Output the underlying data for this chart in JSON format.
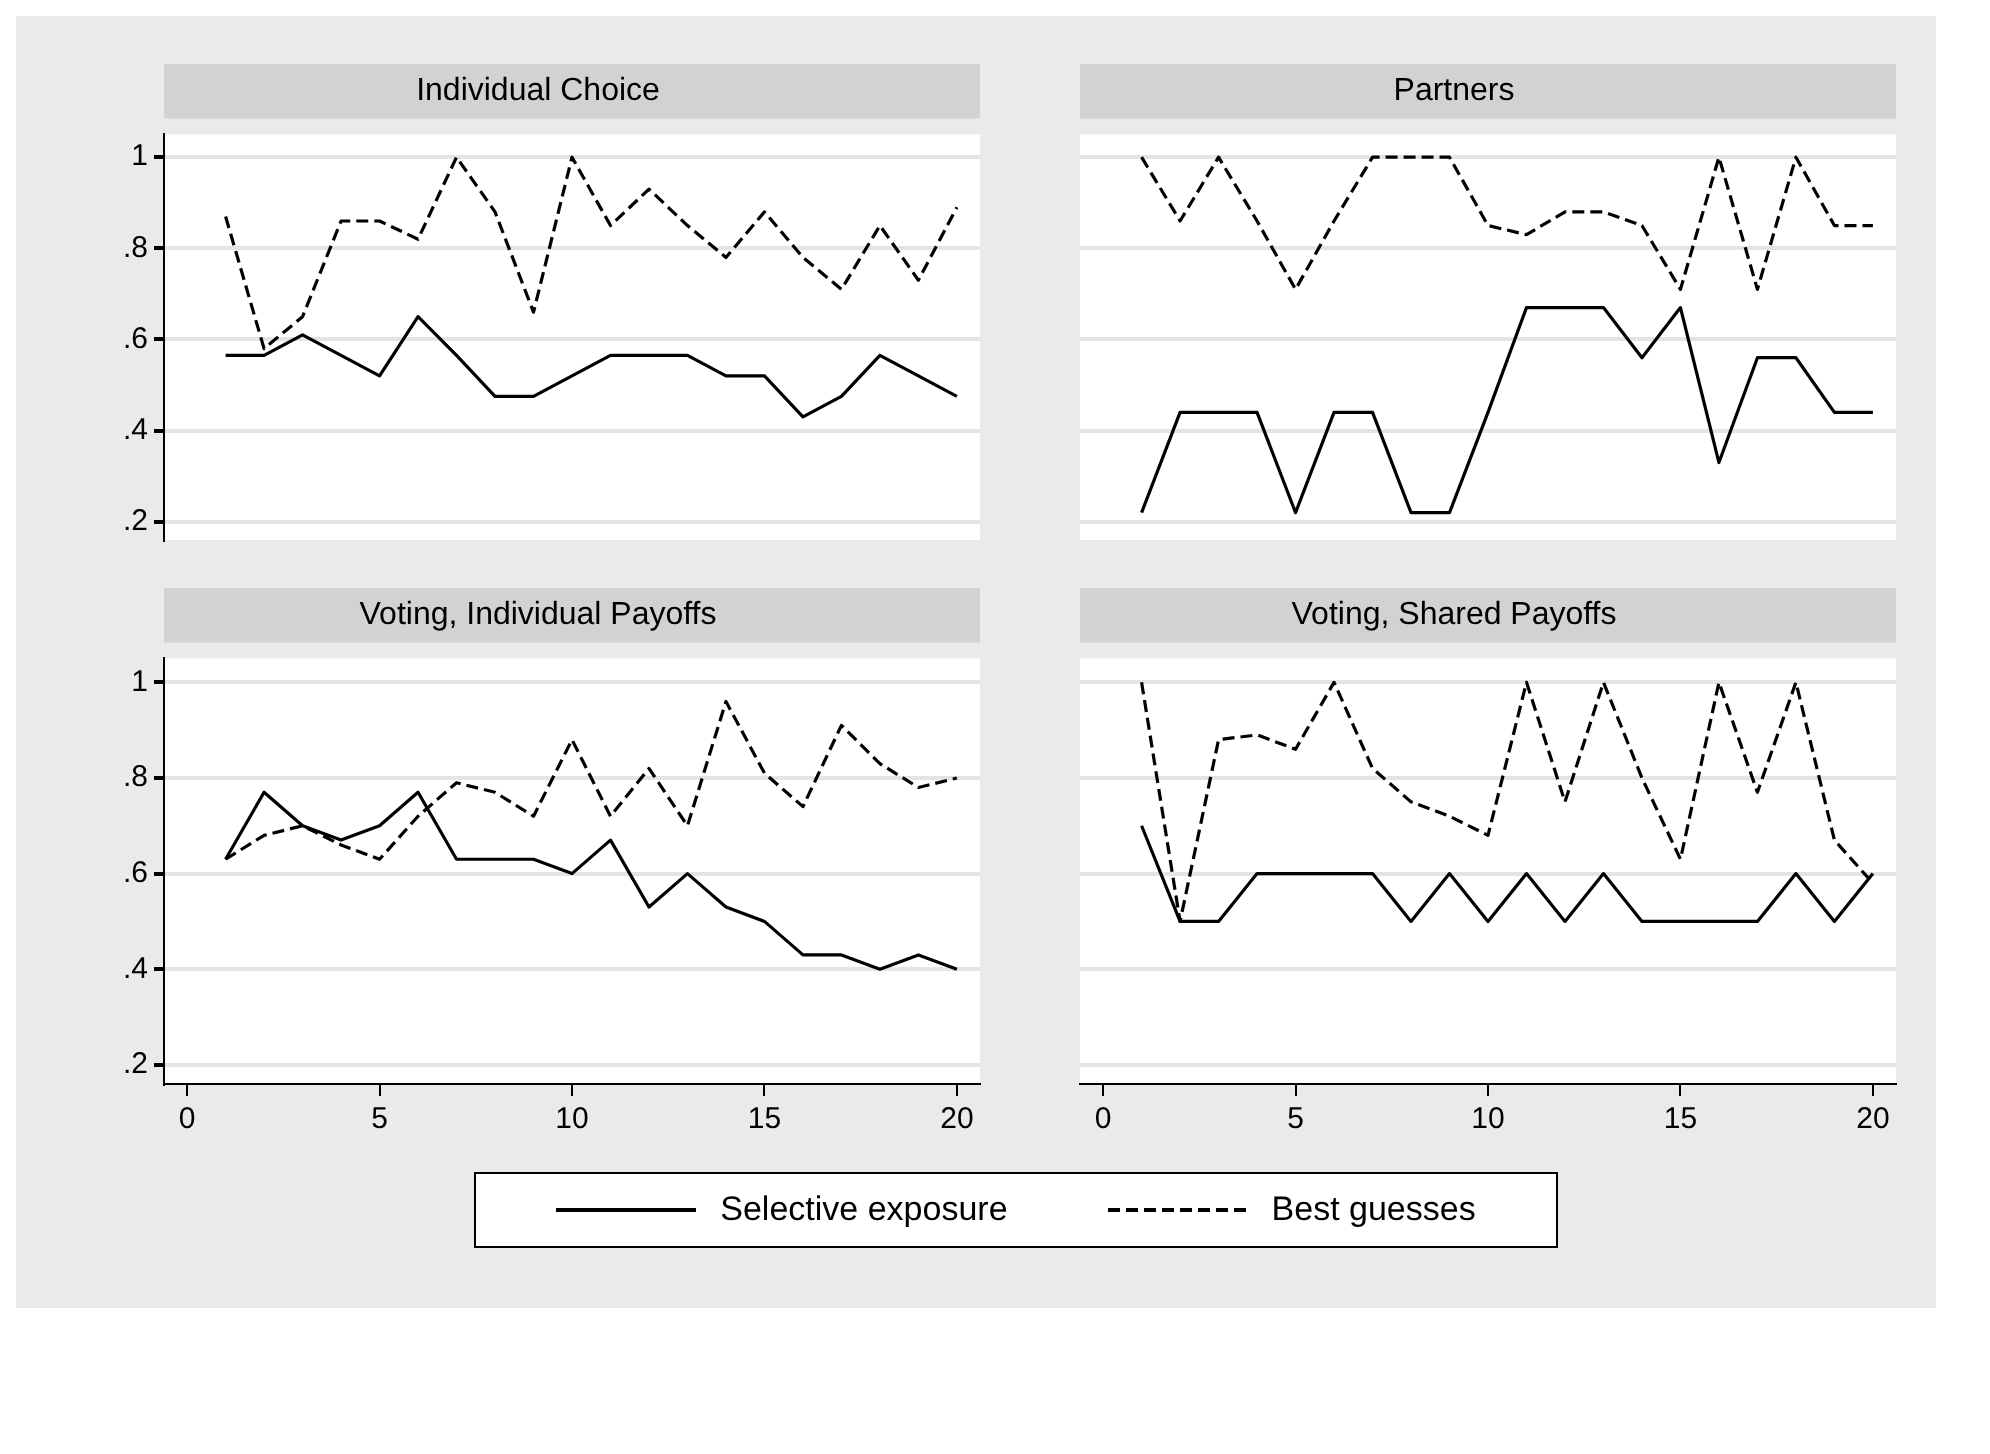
{
  "chart_data": [
    {
      "type": "line",
      "title": "Individual Choice",
      "x": [
        1,
        2,
        3,
        4,
        5,
        6,
        7,
        8,
        9,
        10,
        11,
        12,
        13,
        14,
        15,
        16,
        17,
        18,
        19,
        20
      ],
      "xlim": [
        -0.6,
        20.6
      ],
      "xticks": [
        0,
        5,
        10,
        15,
        20
      ],
      "ylim": [
        0.16,
        1.05
      ],
      "yticks": [
        {
          "value": 0.2,
          "label": ".2"
        },
        {
          "value": 0.4,
          "label": ".4"
        },
        {
          "value": 0.6,
          "label": ".6"
        },
        {
          "value": 0.8,
          "label": ".8"
        },
        {
          "value": 1,
          "label": "1"
        }
      ],
      "grid": "y",
      "tick_labels": "y",
      "legend": "bottom",
      "marker": "none",
      "series": [
        {
          "name": "Selective exposure",
          "color": "#000000",
          "line_style": "solid",
          "values": [
            0.565,
            0.565,
            0.61,
            0.565,
            0.52,
            0.65,
            0.565,
            0.475,
            0.475,
            0.52,
            0.565,
            0.565,
            0.565,
            0.52,
            0.52,
            0.43,
            0.475,
            0.565,
            0.52,
            0.475
          ]
        },
        {
          "name": "Best guesses",
          "color": "#000000",
          "line_style": "dashed",
          "values": [
            0.87,
            0.58,
            0.65,
            0.86,
            0.86,
            0.82,
            1.0,
            0.88,
            0.66,
            1.0,
            0.85,
            0.93,
            0.85,
            0.78,
            0.88,
            0.78,
            0.71,
            0.85,
            0.73,
            0.89
          ]
        }
      ]
    },
    {
      "type": "line",
      "title": "Partners",
      "x": [
        1,
        2,
        3,
        4,
        5,
        6,
        7,
        8,
        9,
        10,
        11,
        12,
        13,
        14,
        15,
        16,
        17,
        18,
        19,
        20
      ],
      "xlim": [
        -0.6,
        20.6
      ],
      "xticks": [
        0,
        5,
        10,
        15,
        20
      ],
      "ylim": [
        0.16,
        1.05
      ],
      "yticks": [
        0.2,
        0.4,
        0.6,
        0.8,
        1
      ],
      "grid": "y",
      "tick_labels": false,
      "marker": "none",
      "series": [
        {
          "color": "#000000",
          "line_style": "solid",
          "values": [
            0.22,
            0.44,
            0.44,
            0.44,
            0.22,
            0.44,
            0.44,
            0.22,
            0.22,
            0.44,
            0.67,
            0.67,
            0.67,
            0.56,
            0.67,
            0.33,
            0.56,
            0.56,
            0.44,
            0.44
          ]
        },
        {
          "color": "#000000",
          "line_style": "dashed",
          "values": [
            1,
            0.86,
            1,
            0.86,
            0.71,
            0.86,
            1,
            1,
            1,
            0.85,
            0.83,
            0.88,
            0.88,
            0.85,
            0.71,
            1,
            0.71,
            1,
            0.85,
            0.85
          ]
        }
      ]
    },
    {
      "type": "line",
      "title": "Voting, Individual Payoffs",
      "x": [
        1,
        2,
        3,
        4,
        5,
        6,
        7,
        8,
        9,
        10,
        11,
        12,
        13,
        14,
        15,
        16,
        17,
        18,
        19,
        20
      ],
      "xlim": [
        -0.6,
        20.6
      ],
      "xticks": [
        0,
        5,
        10,
        15,
        20
      ],
      "ylim": [
        0.16,
        1.05
      ],
      "yticks": [
        {
          "value": 0.2,
          "label": ".2"
        },
        {
          "value": 0.4,
          "label": ".4"
        },
        {
          "value": 0.6,
          "label": ".6"
        },
        {
          "value": 0.8,
          "label": ".8"
        },
        {
          "value": 1,
          "label": "1"
        }
      ],
      "grid": "y",
      "marker": "none",
      "series": [
        {
          "color": "#000000",
          "line_style": "solid",
          "values": [
            0.63,
            0.77,
            0.7,
            0.67,
            0.7,
            0.77,
            0.63,
            0.63,
            0.63,
            0.6,
            0.67,
            0.53,
            0.6,
            0.53,
            0.5,
            0.43,
            0.43,
            0.4,
            0.43,
            0.4
          ]
        },
        {
          "color": "#000000",
          "line_style": "dashed",
          "values": [
            0.63,
            0.68,
            0.7,
            0.66,
            0.63,
            0.72,
            0.79,
            0.77,
            0.72,
            0.88,
            0.72,
            0.82,
            0.7,
            0.96,
            0.81,
            0.74,
            0.91,
            0.83,
            0.78,
            0.8
          ]
        }
      ]
    },
    {
      "type": "line",
      "title": "Voting, Shared Payoffs",
      "x": [
        1,
        2,
        3,
        4,
        5,
        6,
        7,
        8,
        9,
        10,
        11,
        12,
        13,
        14,
        15,
        16,
        17,
        18,
        19,
        20
      ],
      "xlim": [
        -0.6,
        20.6
      ],
      "xticks": [
        0,
        5,
        10,
        15,
        20
      ],
      "ylim": [
        0.16,
        1.05
      ],
      "yticks": [
        0.2,
        0.4,
        0.6,
        0.8,
        1
      ],
      "grid": "y",
      "tick_labels": "x",
      "marker": "none",
      "series": [
        {
          "color": "#000000",
          "line_style": "solid",
          "values": [
            0.7,
            0.5,
            0.5,
            0.6,
            0.6,
            0.6,
            0.6,
            0.5,
            0.6,
            0.5,
            0.6,
            0.5,
            0.6,
            0.5,
            0.5,
            0.5,
            0.5,
            0.6,
            0.5,
            0.6
          ]
        },
        {
          "color": "#000000",
          "line_style": "dashed",
          "values": [
            1,
            0.5,
            0.88,
            0.89,
            0.86,
            1,
            0.82,
            0.75,
            0.72,
            0.68,
            1,
            0.75,
            1,
            0.8,
            0.63,
            1,
            0.77,
            1,
            0.67,
            0.58
          ]
        }
      ]
    }
  ]
}
